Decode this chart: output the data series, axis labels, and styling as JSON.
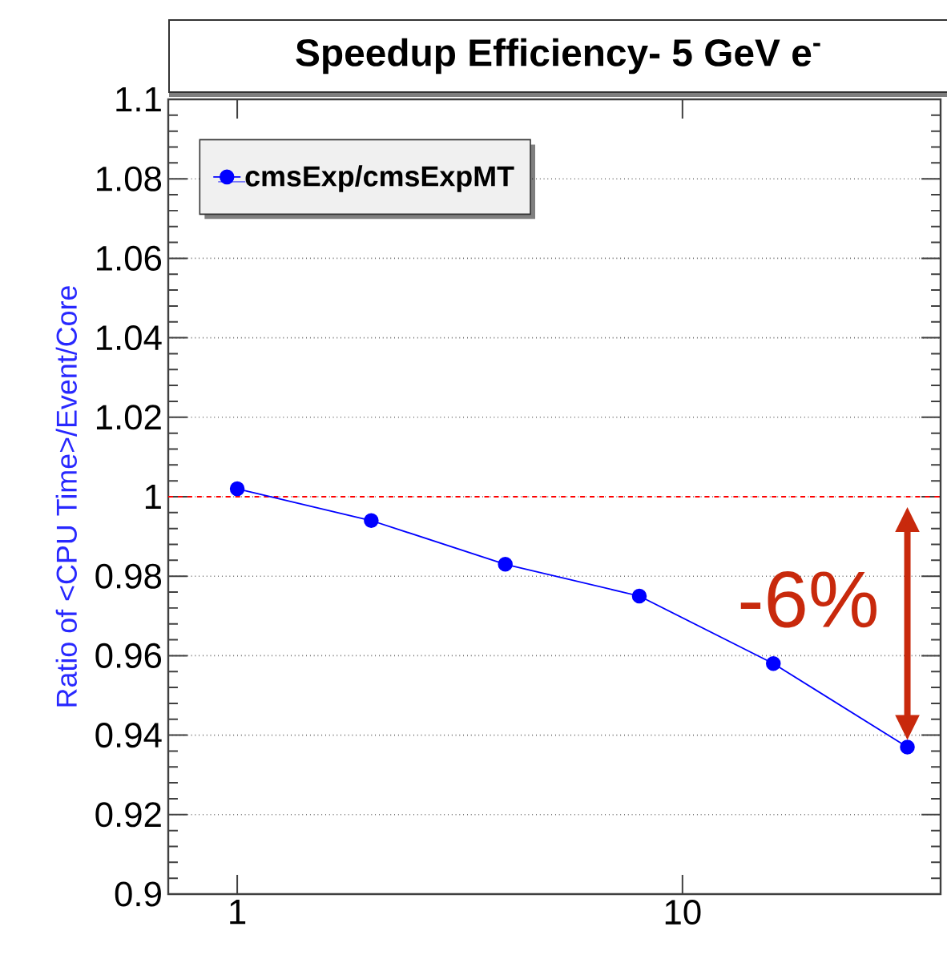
{
  "chart_data": {
    "type": "line",
    "title": "Speedup Efficiency- 5 GeV e$^{-}$",
    "ylabel": "Ratio of <CPU Time>/Event/Core",
    "x": [
      1,
      2,
      4,
      8,
      16,
      32
    ],
    "series": [
      {
        "name": "cmsExp/cmsExpMT",
        "color": "#0000ff",
        "values": [
          1.002,
          0.994,
          0.983,
          0.975,
          0.958,
          0.937
        ]
      }
    ],
    "xlim": [
      0.7,
      38
    ],
    "ylim": [
      0.9,
      1.1
    ],
    "xticks": [
      1,
      10
    ],
    "yticks": [
      0.9,
      0.92,
      0.94,
      0.96,
      0.98,
      1,
      1.02,
      1.04,
      1.06,
      1.08,
      1.1
    ],
    "log": "x",
    "grid": "y",
    "legend": "top left",
    "marker": "circle",
    "line_style": "solid",
    "ref_lines": [
      {
        "axis": "y",
        "value": 1,
        "color": "#ff0000",
        "line_style": "dashed"
      }
    ],
    "annotations": [
      "-6%"
    ]
  }
}
